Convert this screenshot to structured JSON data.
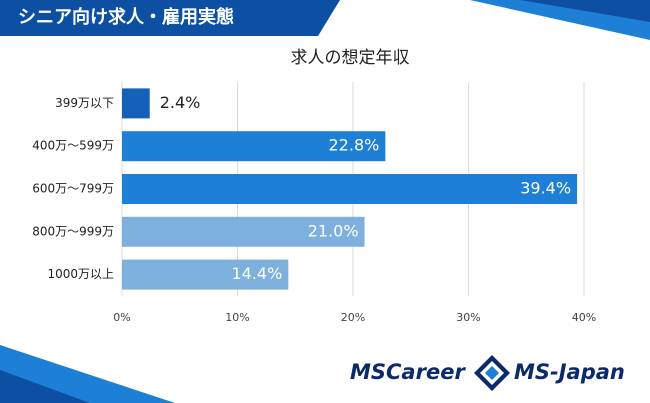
{
  "header": "シニア向け求人・雇用実態",
  "logos": [
    "MSCareer",
    "MS-Japan"
  ],
  "chart_data": {
    "type": "hbar",
    "title": "求人の想定年収",
    "categories": [
      "399万以下",
      "400万～599万",
      "600万～799万",
      "800万～999万",
      "1000万以上"
    ],
    "values": [
      2.4,
      22.8,
      39.4,
      21.0,
      14.4
    ],
    "value_labels": [
      "2.4%",
      "22.8%",
      "39.4%",
      "21.0%",
      "14.4%"
    ],
    "colors": [
      "#1560b8",
      "#1e7fd6",
      "#1e7fd6",
      "#7eb0dd",
      "#7eb0dd"
    ],
    "xlim": [
      0,
      40
    ],
    "xticks": [
      {
        "value": 0,
        "label": "0%"
      },
      {
        "value": 10,
        "label": "10%"
      },
      {
        "value": 20,
        "label": "20%"
      },
      {
        "value": 30,
        "label": "30%"
      },
      {
        "value": 40,
        "label": "40%"
      }
    ],
    "grid": true
  }
}
